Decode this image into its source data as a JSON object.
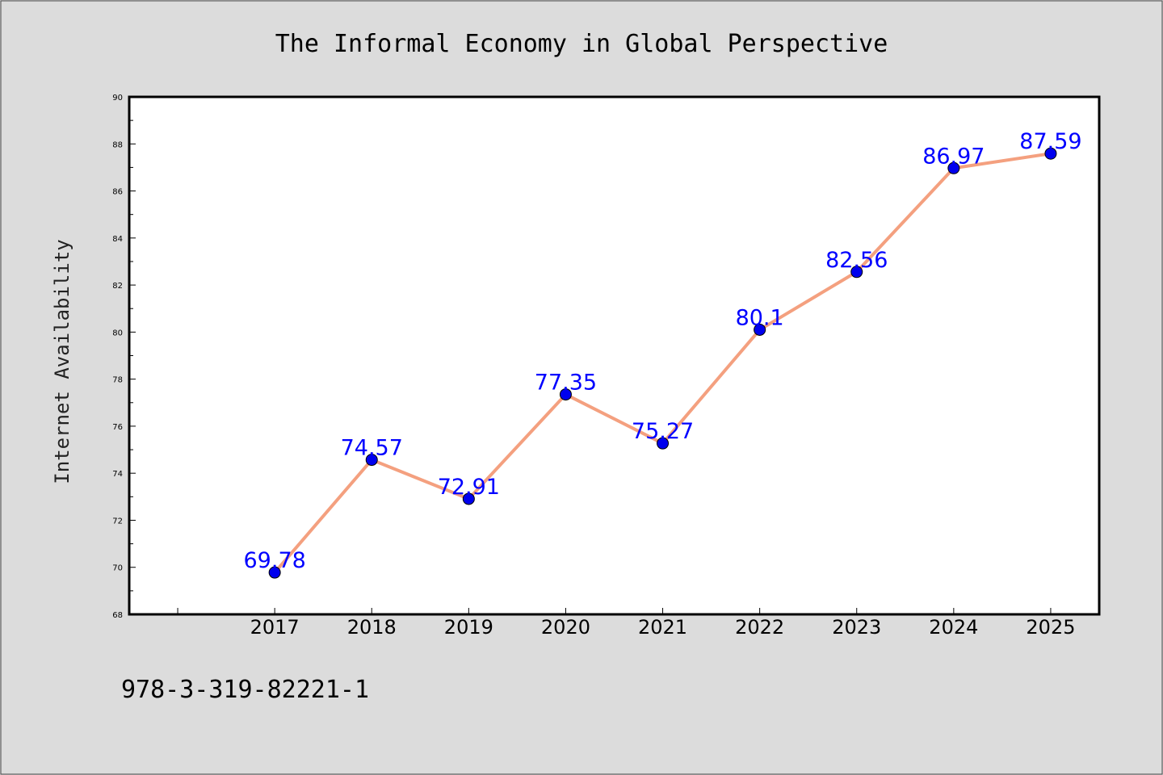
{
  "chart_data": {
    "type": "line",
    "title": "The Informal Economy in Global Perspective",
    "ylabel": "Internet Availability",
    "xlabel": "",
    "categories": [
      "2017",
      "2018",
      "2019",
      "2020",
      "2021",
      "2022",
      "2023",
      "2024",
      "2025"
    ],
    "values": [
      69.78,
      74.57,
      72.91,
      77.35,
      75.27,
      80.1,
      82.56,
      86.97,
      87.59
    ],
    "data_labels": [
      "69.78",
      "74.57",
      "72.91",
      "77.35",
      "75.27",
      "80.1",
      "82.56",
      "86.97",
      "87.59"
    ],
    "ylim": [
      68,
      90
    ],
    "yticks": [
      68,
      70,
      72,
      74,
      76,
      78,
      80,
      82,
      84,
      86,
      88,
      90
    ],
    "x_slot_min": 2015.5,
    "x_slot_max": 2025.5,
    "grid": false,
    "legend": "none",
    "line_color": "#f4a07f",
    "marker_color": "#0000ee",
    "label_color": "#0000ff"
  },
  "footer": {
    "isbn": "978-3-319-82221-1"
  }
}
